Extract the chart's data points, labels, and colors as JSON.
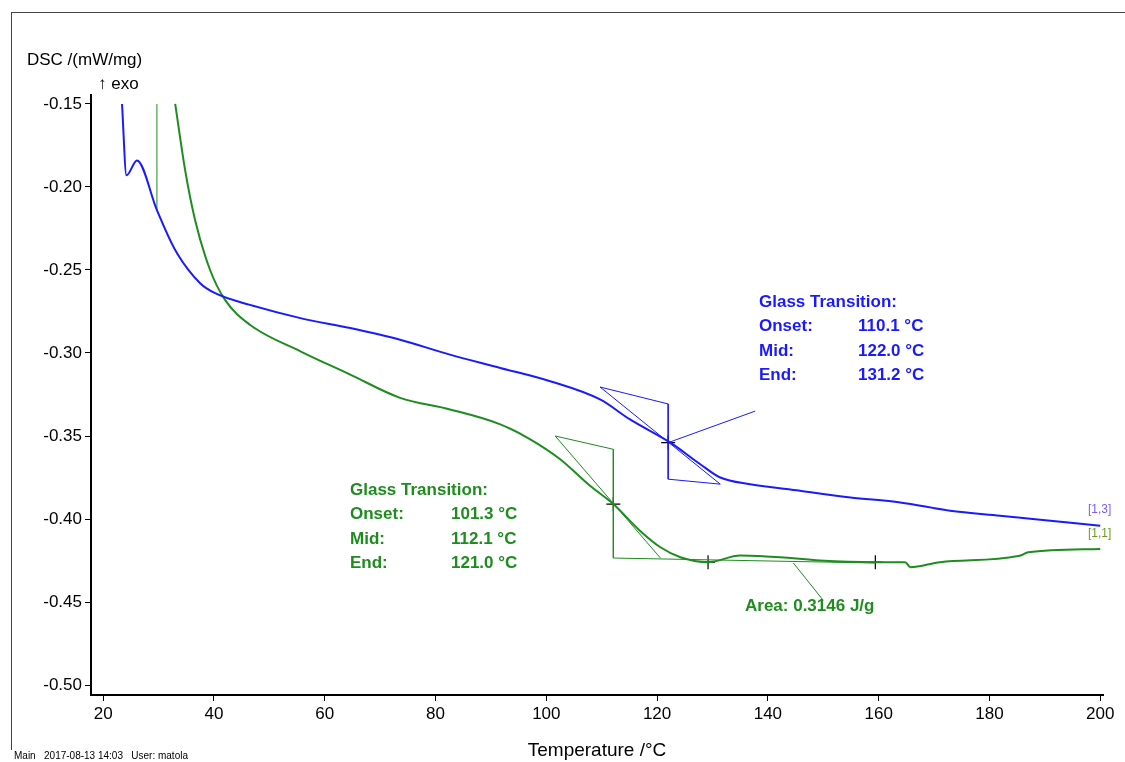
{
  "chart_data": {
    "type": "line",
    "xlabel": "Temperature /°C",
    "ylabel": "DSC /(mW/mg)",
    "xlim": [
      17.8,
      200.5
    ],
    "ylim": [
      -0.506,
      -0.1446
    ],
    "xticks": [
      20,
      40,
      60,
      80,
      100,
      120,
      140,
      160,
      180,
      200
    ],
    "yticks": [
      {
        "value": -0.15,
        "label": "-0.15"
      },
      {
        "value": -0.2,
        "label": "-0.20"
      },
      {
        "value": -0.25,
        "label": "-0.25"
      },
      {
        "value": -0.3,
        "label": "-0.30"
      },
      {
        "value": -0.35,
        "label": "-0.35"
      },
      {
        "value": -0.4,
        "label": "-0.40"
      },
      {
        "value": -0.45,
        "label": "-0.45"
      },
      {
        "value": -0.5,
        "label": "-0.50"
      }
    ],
    "grid": false,
    "legend": false,
    "series": [
      {
        "color": "#1a1aff",
        "x": [
          23.4,
          24.2,
          26.1,
          29.7,
          33.0,
          37.5,
          40.2,
          46.5,
          55.6,
          64.6,
          73.6,
          82.6,
          91.7,
          100.7,
          109.7,
          115.1,
          122.4,
          127.8,
          131.4,
          136.8,
          145.8,
          154.9,
          163.9,
          172.9,
          181.9,
          191.0,
          200
        ],
        "values": [
          -0.15,
          -0.193,
          -0.184,
          -0.214,
          -0.238,
          -0.258,
          -0.264,
          -0.271,
          -0.279,
          -0.285,
          -0.292,
          -0.301,
          -0.309,
          -0.317,
          -0.328,
          -0.34,
          -0.354,
          -0.367,
          -0.375,
          -0.379,
          -0.383,
          -0.387,
          -0.39,
          -0.395,
          -0.398,
          -0.401,
          -0.404
        ]
      },
      {
        "color": "#1e8c1e",
        "x": [
          33.0,
          34.8,
          36.6,
          39.3,
          42.0,
          46.5,
          55.6,
          64.6,
          73.6,
          82.6,
          91.7,
          97.1,
          102.5,
          107.9,
          112.1,
          116.9,
          120.6,
          124.2,
          129.2,
          135.0,
          142.2,
          149.4,
          159.4,
          164.8,
          165.7,
          171.1,
          185.6,
          187.0,
          200
        ],
        "values": [
          -0.15,
          -0.19,
          -0.22,
          -0.25,
          -0.268,
          -0.283,
          -0.299,
          -0.313,
          -0.327,
          -0.334,
          -0.343,
          -0.352,
          -0.364,
          -0.38,
          -0.391,
          -0.407,
          -0.417,
          -0.423,
          -0.426,
          -0.422,
          -0.423,
          -0.425,
          -0.426,
          -0.426,
          -0.429,
          -0.426,
          -0.422,
          -0.42,
          -0.418
        ]
      },
      {
        "color": "#1e8c1e",
        "x": [
          29.7,
          29.7
        ],
        "values": [
          -0.214,
          -0.15
        ]
      },
      {
        "color": "#1a1aff",
        "x": [
          109.7,
          122.0
        ],
        "values": [
          -0.3205,
          -0.3307
        ]
      },
      {
        "color": "#1a1aff",
        "x": [
          122.0,
          131.4
        ],
        "values": [
          -0.376,
          -0.379
        ]
      },
      {
        "color": "#1a1aff",
        "x": [
          109.7,
          131.4
        ],
        "values": [
          -0.3205,
          -0.379
        ]
      },
      {
        "color": "#1a1aff",
        "x": [
          122.0,
          122.0
        ],
        "values": [
          -0.3307,
          -0.376
        ]
      },
      {
        "color": "#1a1aff",
        "x": [
          122.0,
          137.7
        ],
        "values": [
          -0.354,
          -0.335
        ]
      },
      {
        "color": "#1e8c1e",
        "x": [
          101.6,
          112.1
        ],
        "values": [
          -0.35,
          -0.358
        ]
      },
      {
        "color": "#1e8c1e",
        "x": [
          112.1,
          159.4
        ],
        "values": [
          -0.4235,
          -0.4265
        ]
      },
      {
        "color": "#1e8c1e",
        "x": [
          101.6,
          120.6
        ],
        "values": [
          -0.35,
          -0.4235
        ]
      },
      {
        "color": "#1e8c1e",
        "x": [
          112.1,
          112.1
        ],
        "values": [
          -0.358,
          -0.4235
        ]
      },
      {
        "color": "#1e8c1e",
        "x": [
          144.6,
          150.0
        ],
        "values": [
          -0.4265,
          -0.449
        ]
      },
      {
        "type": "scatter",
        "marker": "cross",
        "color": "#000000",
        "x": [
          122.0,
          112.1,
          129.2,
          159.4
        ],
        "values": [
          -0.354,
          -0.391,
          -0.426,
          -0.426
        ]
      }
    ],
    "annotations": [
      "↑ exo",
      "Glass Transition:",
      "Onset:",
      "110.1 °C",
      "Mid:",
      "122.0 °C",
      "End:",
      "131.2 °C",
      "Glass Transition:",
      "Onset:",
      "101.3 °C",
      "Mid:",
      "112.1 °C",
      "End:",
      "121.0 °C",
      "Area: 0.3146 J/g",
      "[1,3]",
      "[1,1]",
      "Main   2017-08-13 14:03   User: matola"
    ]
  }
}
